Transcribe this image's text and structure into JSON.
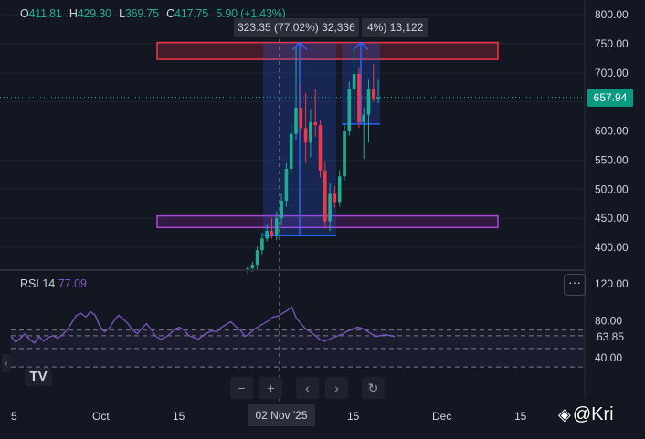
{
  "ohlc": {
    "o_key": "O",
    "o_val": "411.81",
    "h_key": "H",
    "h_val": "429.30",
    "l_key": "L",
    "l_val": "369.75",
    "c_key": "C",
    "c_val": "417.75",
    "change": "5.90 (+1.43%)"
  },
  "measure_label": "323.35 (77.02%) 32,336",
  "measure_label2": "4%) 13,122",
  "current_price": "657.94",
  "rsi": {
    "name": "RSI",
    "period": "14",
    "value": "77.09",
    "tag": "63.85",
    "menu": "···"
  },
  "logo_text": "TV",
  "collapse_icon": "‹",
  "nav": {
    "minus": "−",
    "plus": "+",
    "back": "‹",
    "forward": "›",
    "reset": "↻"
  },
  "x_axis": {
    "labels": [
      "5",
      "Oct",
      "15",
      "15",
      "Dec",
      "15"
    ],
    "crosshair_date": "02 Nov '25"
  },
  "watermark": {
    "icon": "◈",
    "text": "@Kri"
  },
  "colors": {
    "up": "#22ab94",
    "down": "#f23645",
    "rsi": "#7e57c2",
    "accent": "#089981"
  },
  "chart_data": [
    {
      "type": "candlestick",
      "y_axis_ticks": [
        800,
        750,
        700,
        650,
        600,
        550,
        500,
        450,
        400
      ],
      "y_axis_labels": [
        "800.00",
        "750.00",
        "700.00",
        "650.00",
        "600.00",
        "550.00",
        "500.00",
        "450.00",
        "400.00"
      ],
      "ylim": [
        350,
        815
      ],
      "current_price": 657.94,
      "resistance_zone": [
        723,
        752
      ],
      "support_zone": [
        434,
        454
      ],
      "candles": [
        {
          "o": 360,
          "h": 368,
          "l": 355,
          "c": 364
        },
        {
          "o": 364,
          "h": 375,
          "l": 358,
          "c": 370
        },
        {
          "o": 370,
          "h": 402,
          "l": 360,
          "c": 395
        },
        {
          "o": 395,
          "h": 425,
          "l": 388,
          "c": 415
        },
        {
          "o": 415,
          "h": 440,
          "l": 410,
          "c": 428
        },
        {
          "o": 428,
          "h": 450,
          "l": 415,
          "c": 420
        },
        {
          "o": 420,
          "h": 462,
          "l": 412,
          "c": 450
        },
        {
          "o": 450,
          "h": 492,
          "l": 438,
          "c": 480
        },
        {
          "o": 480,
          "h": 545,
          "l": 470,
          "c": 535
        },
        {
          "o": 535,
          "h": 612,
          "l": 525,
          "c": 595
        },
        {
          "o": 595,
          "h": 745,
          "l": 585,
          "c": 640
        },
        {
          "o": 640,
          "h": 682,
          "l": 590,
          "c": 605
        },
        {
          "o": 605,
          "h": 665,
          "l": 545,
          "c": 580
        },
        {
          "o": 580,
          "h": 638,
          "l": 555,
          "c": 615
        },
        {
          "o": 615,
          "h": 672,
          "l": 590,
          "c": 610
        },
        {
          "o": 610,
          "h": 618,
          "l": 520,
          "c": 532
        },
        {
          "o": 532,
          "h": 548,
          "l": 432,
          "c": 445
        },
        {
          "o": 445,
          "h": 510,
          "l": 428,
          "c": 492
        },
        {
          "o": 492,
          "h": 505,
          "l": 468,
          "c": 478
        },
        {
          "o": 478,
          "h": 532,
          "l": 470,
          "c": 522
        },
        {
          "o": 522,
          "h": 612,
          "l": 515,
          "c": 600
        },
        {
          "o": 600,
          "h": 685,
          "l": 592,
          "c": 672
        },
        {
          "o": 672,
          "h": 742,
          "l": 618,
          "c": 698
        },
        {
          "o": 698,
          "h": 710,
          "l": 605,
          "c": 615
        },
        {
          "o": 615,
          "h": 640,
          "l": 552,
          "c": 628
        },
        {
          "o": 628,
          "h": 688,
          "l": 580,
          "c": 672
        },
        {
          "o": 672,
          "h": 715,
          "l": 650,
          "c": 655
        },
        {
          "o": 655,
          "h": 688,
          "l": 648,
          "c": 658
        }
      ]
    },
    {
      "type": "line",
      "name": "RSI 14",
      "y_axis_labels": [
        "120.00",
        "80.00",
        "40.00"
      ],
      "ylim": [
        15,
        125
      ],
      "bands": [
        30,
        50,
        70
      ],
      "values": [
        63,
        57,
        61,
        66,
        60,
        56,
        63,
        58,
        62,
        64,
        61,
        65,
        70,
        78,
        86,
        88,
        84,
        90,
        86,
        74,
        68,
        72,
        80,
        86,
        82,
        77,
        70,
        66,
        72,
        77,
        70,
        63,
        60,
        62,
        66,
        71,
        73,
        70,
        64,
        62,
        60,
        64,
        67,
        69,
        68,
        73,
        76,
        79,
        74,
        70,
        63,
        66,
        71,
        74,
        77,
        80,
        84,
        85,
        88,
        91,
        95,
        83,
        77,
        71,
        68,
        64,
        60,
        58,
        60,
        62,
        64,
        66,
        69,
        71,
        73,
        72,
        69,
        66,
        63,
        64,
        65,
        64,
        63
      ]
    }
  ]
}
